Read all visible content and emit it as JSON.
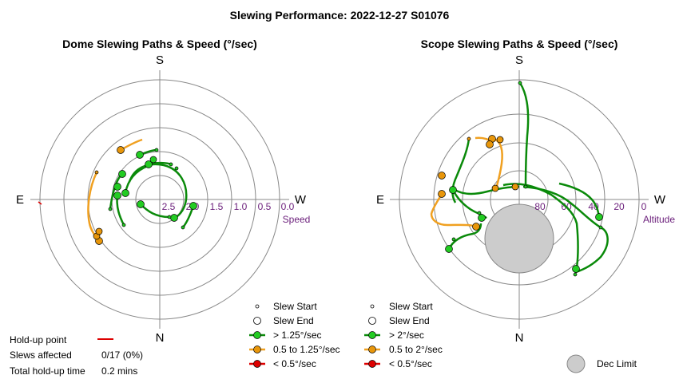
{
  "title": "Slewing Performance: 2022-12-27 S01076",
  "colors": {
    "green": "#0a8a0a",
    "green_fill": "#22cc22",
    "orange": "#f0a020",
    "orange_fill": "#e8960a",
    "red": "#dd0000",
    "grid": "#888888",
    "tick_purple": "#6a1d7a",
    "dec_limit": "#cccccc"
  },
  "dome": {
    "title": "Dome Slewing Paths & Speed (°/sec)",
    "dir_s": "S",
    "dir_n": "N",
    "dir_e": "E",
    "dir_w": "W",
    "ticks": [
      "2.5",
      "2.0",
      "1.5",
      "1.0",
      "0.5",
      "0.0"
    ],
    "axis_label": "Speed"
  },
  "scope": {
    "title": "Scope Slewing Paths & Speed (°/sec)",
    "dir_s": "S",
    "dir_n": "N",
    "dir_e": "E",
    "dir_w": "W",
    "ticks": [
      "80",
      "60",
      "40",
      "20",
      "0"
    ],
    "axis_label": "Altitude"
  },
  "legend_dome": {
    "start": "Slew Start",
    "end": "Slew End",
    "fast": "> 1.25°/sec",
    "mid": "0.5 to 1.25°/sec",
    "slow": "< 0.5°/sec"
  },
  "legend_scope": {
    "start": "Slew Start",
    "end": "Slew End",
    "fast": "> 2°/sec",
    "mid": "0.5 to 2°/sec",
    "slow": "< 0.5°/sec",
    "dec_limit": "Dec Limit"
  },
  "stats": {
    "holdup_label": "Hold-up point",
    "affected_label": "Slews affected",
    "affected_value": "0/17 (0%)",
    "total_label": "Total hold-up time",
    "total_value": "0.2 mins"
  },
  "chart_data": [
    {
      "type": "polar",
      "title": "Dome Slewing Paths & Speed (°/sec)",
      "radial_label": "Speed",
      "radial_ticks": [
        2.5,
        2.0,
        1.5,
        1.0,
        0.5,
        0.0
      ],
      "directions": [
        "S",
        "W",
        "N",
        "E"
      ],
      "series": [
        {
          "name": "> 1.25°/sec"
        },
        {
          "name": "0.5 to 1.25°/sec"
        },
        {
          "name": "< 0.5°/sec"
        }
      ],
      "slews_affected": "0/17 (0%)",
      "total_holdup_time": "0.2 mins"
    },
    {
      "type": "polar",
      "title": "Scope Slewing Paths & Speed (°/sec)",
      "radial_label": "Altitude",
      "radial_ticks": [
        80,
        60,
        40,
        20,
        0
      ],
      "directions": [
        "S",
        "W",
        "N",
        "E"
      ],
      "series": [
        {
          "name": "> 2°/sec"
        },
        {
          "name": "0.5 to 2°/sec"
        },
        {
          "name": "< 0.5°/sec"
        },
        {
          "name": "Dec Limit"
        }
      ]
    }
  ]
}
